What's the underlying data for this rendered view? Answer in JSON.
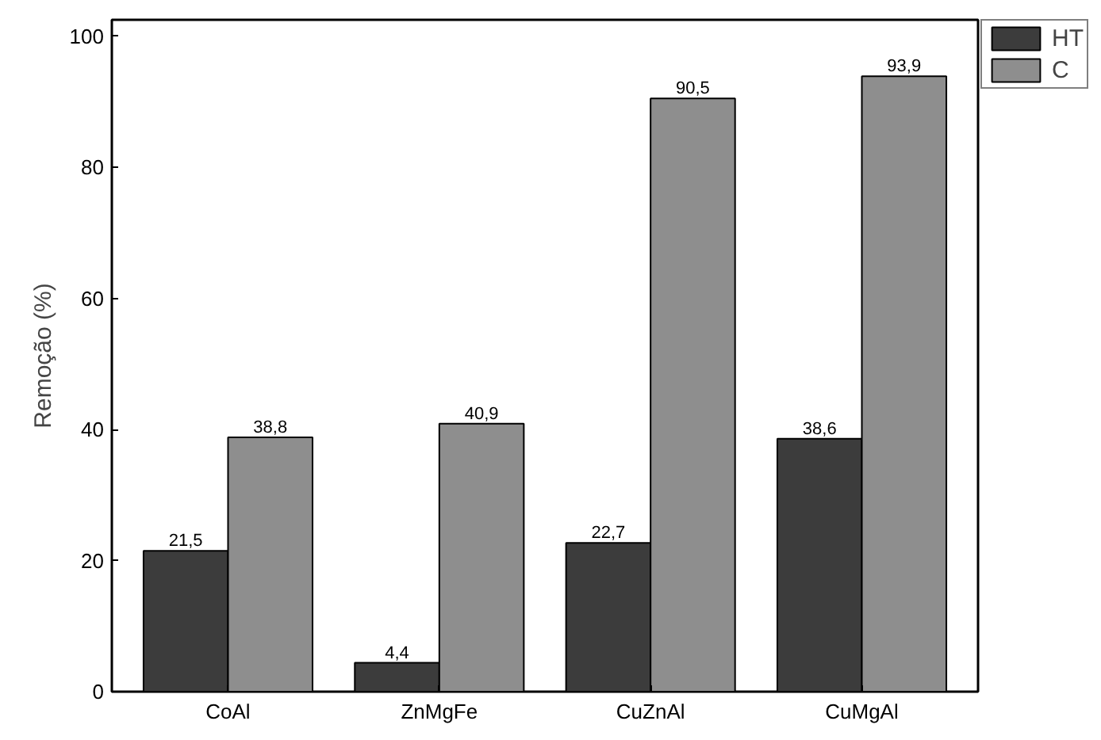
{
  "chart_data": {
    "type": "bar",
    "ylabel": "Remoção (%)",
    "categories": [
      "CoAl",
      "ZnMgFe",
      "CuZnAl",
      "CuMgAl"
    ],
    "series": [
      {
        "name": "HT",
        "color": "#3c3c3c",
        "values": [
          21.5,
          4.4,
          22.7,
          38.6
        ],
        "value_labels": [
          "21,5",
          "4,4",
          "22,7",
          "38,6"
        ]
      },
      {
        "name": "C",
        "color": "#8e8e8e",
        "values": [
          38.8,
          40.9,
          90.5,
          93.9
        ],
        "value_labels": [
          "38,8",
          "40,9",
          "90,5",
          "93,9"
        ]
      }
    ],
    "ylim": [
      0,
      102.5
    ],
    "yticks": [
      0,
      20,
      40,
      60,
      80,
      100
    ],
    "grid": false,
    "legend": "top right"
  }
}
